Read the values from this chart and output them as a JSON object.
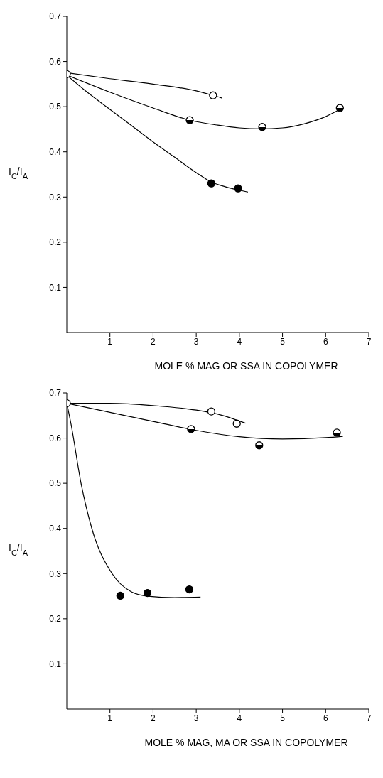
{
  "chart_data": [
    {
      "type": "scatter",
      "xlabel": "MOLE % MAG OR SSA IN COPOLYMER",
      "ylabel": "I$_{C}$/I$_{A}$",
      "xlim": [
        0,
        7
      ],
      "ylim": [
        0,
        0.7
      ],
      "xticks": [
        1,
        2,
        3,
        4,
        5,
        6,
        7
      ],
      "yticks": [
        0.1,
        0.2,
        0.3,
        0.4,
        0.5,
        0.6,
        0.7
      ],
      "marker": "circle",
      "grid": false,
      "legend": false,
      "series": [
        {
          "type": "scatter",
          "color": "#000000",
          "x": [
            0,
            3.39
          ],
          "values": [
            0.572,
            0.525
          ]
        },
        {
          "type": "scatter",
          "color": "#000000",
          "x": [
            2.85,
            4.53,
            6.33
          ],
          "values": [
            0.47,
            0.455,
            0.497
          ]
        },
        {
          "type": "scatter",
          "color": "#000000",
          "x": [
            3.35,
            3.97
          ],
          "values": [
            0.33,
            0.319
          ]
        },
        {
          "type": "line",
          "color": "#000000",
          "marker": "none",
          "line_style": "solid",
          "x": [
            0,
            1,
            2,
            3,
            3.39,
            3.6
          ],
          "values": [
            0.575,
            0.562,
            0.55,
            0.535,
            0.525,
            0.519
          ]
        },
        {
          "type": "line",
          "color": "#000000",
          "marker": "none",
          "line_style": "solid",
          "x": [
            0,
            1,
            2,
            2.85,
            3.5,
            4,
            4.5,
            5,
            5.5,
            6,
            6.35
          ],
          "values": [
            0.57,
            0.532,
            0.497,
            0.47,
            0.459,
            0.453,
            0.451,
            0.453,
            0.462,
            0.478,
            0.495
          ]
        },
        {
          "type": "line",
          "color": "#000000",
          "marker": "none",
          "line_style": "solid",
          "x": [
            0,
            0.5,
            1,
            1.5,
            2,
            2.5,
            3,
            3.35,
            3.7,
            4,
            4.2
          ],
          "values": [
            0.57,
            0.53,
            0.494,
            0.458,
            0.422,
            0.388,
            0.354,
            0.333,
            0.322,
            0.315,
            0.311
          ]
        }
      ]
    },
    {
      "type": "scatter",
      "xlabel": "MOLE % MAG, MA OR SSA IN COPOLYMER",
      "ylabel": "I$_{C}$/I$_{A}$",
      "xlim": [
        0,
        7
      ],
      "ylim": [
        0,
        0.7
      ],
      "xticks": [
        1,
        2,
        3,
        4,
        5,
        6,
        7
      ],
      "yticks": [
        0.1,
        0.2,
        0.3,
        0.4,
        0.5,
        0.6,
        0.7
      ],
      "marker": "circle",
      "grid": false,
      "legend": false,
      "series": [
        {
          "type": "scatter",
          "color": "#000000",
          "x": [
            0,
            3.35,
            3.94
          ],
          "values": [
            0.677,
            0.659,
            0.632
          ]
        },
        {
          "type": "scatter",
          "color": "#000000",
          "x": [
            2.88,
            4.46,
            6.26
          ],
          "values": [
            0.62,
            0.584,
            0.612
          ]
        },
        {
          "type": "scatter",
          "color": "#000000",
          "x": [
            1.24,
            1.87,
            2.84
          ],
          "values": [
            0.251,
            0.257,
            0.265
          ]
        },
        {
          "type": "line",
          "color": "#000000",
          "marker": "none",
          "line_style": "solid",
          "x": [
            0,
            1,
            2,
            3,
            3.5,
            4.14
          ],
          "values": [
            0.677,
            0.677,
            0.672,
            0.662,
            0.653,
            0.633
          ]
        },
        {
          "type": "line",
          "color": "#000000",
          "marker": "none",
          "line_style": "solid",
          "x": [
            0,
            1,
            2,
            3,
            4,
            5,
            6,
            6.4
          ],
          "values": [
            0.677,
            0.657,
            0.637,
            0.617,
            0.603,
            0.598,
            0.601,
            0.604
          ]
        },
        {
          "type": "line",
          "color": "#000000",
          "marker": "none",
          "line_style": "solid",
          "x": [
            0,
            0.1,
            0.33,
            0.58,
            1.05,
            1.49,
            1.88,
            2.5,
            3.1
          ],
          "values": [
            0.677,
            0.63,
            0.5,
            0.4,
            0.3,
            0.26,
            0.25,
            0.247,
            0.248
          ]
        }
      ]
    }
  ]
}
